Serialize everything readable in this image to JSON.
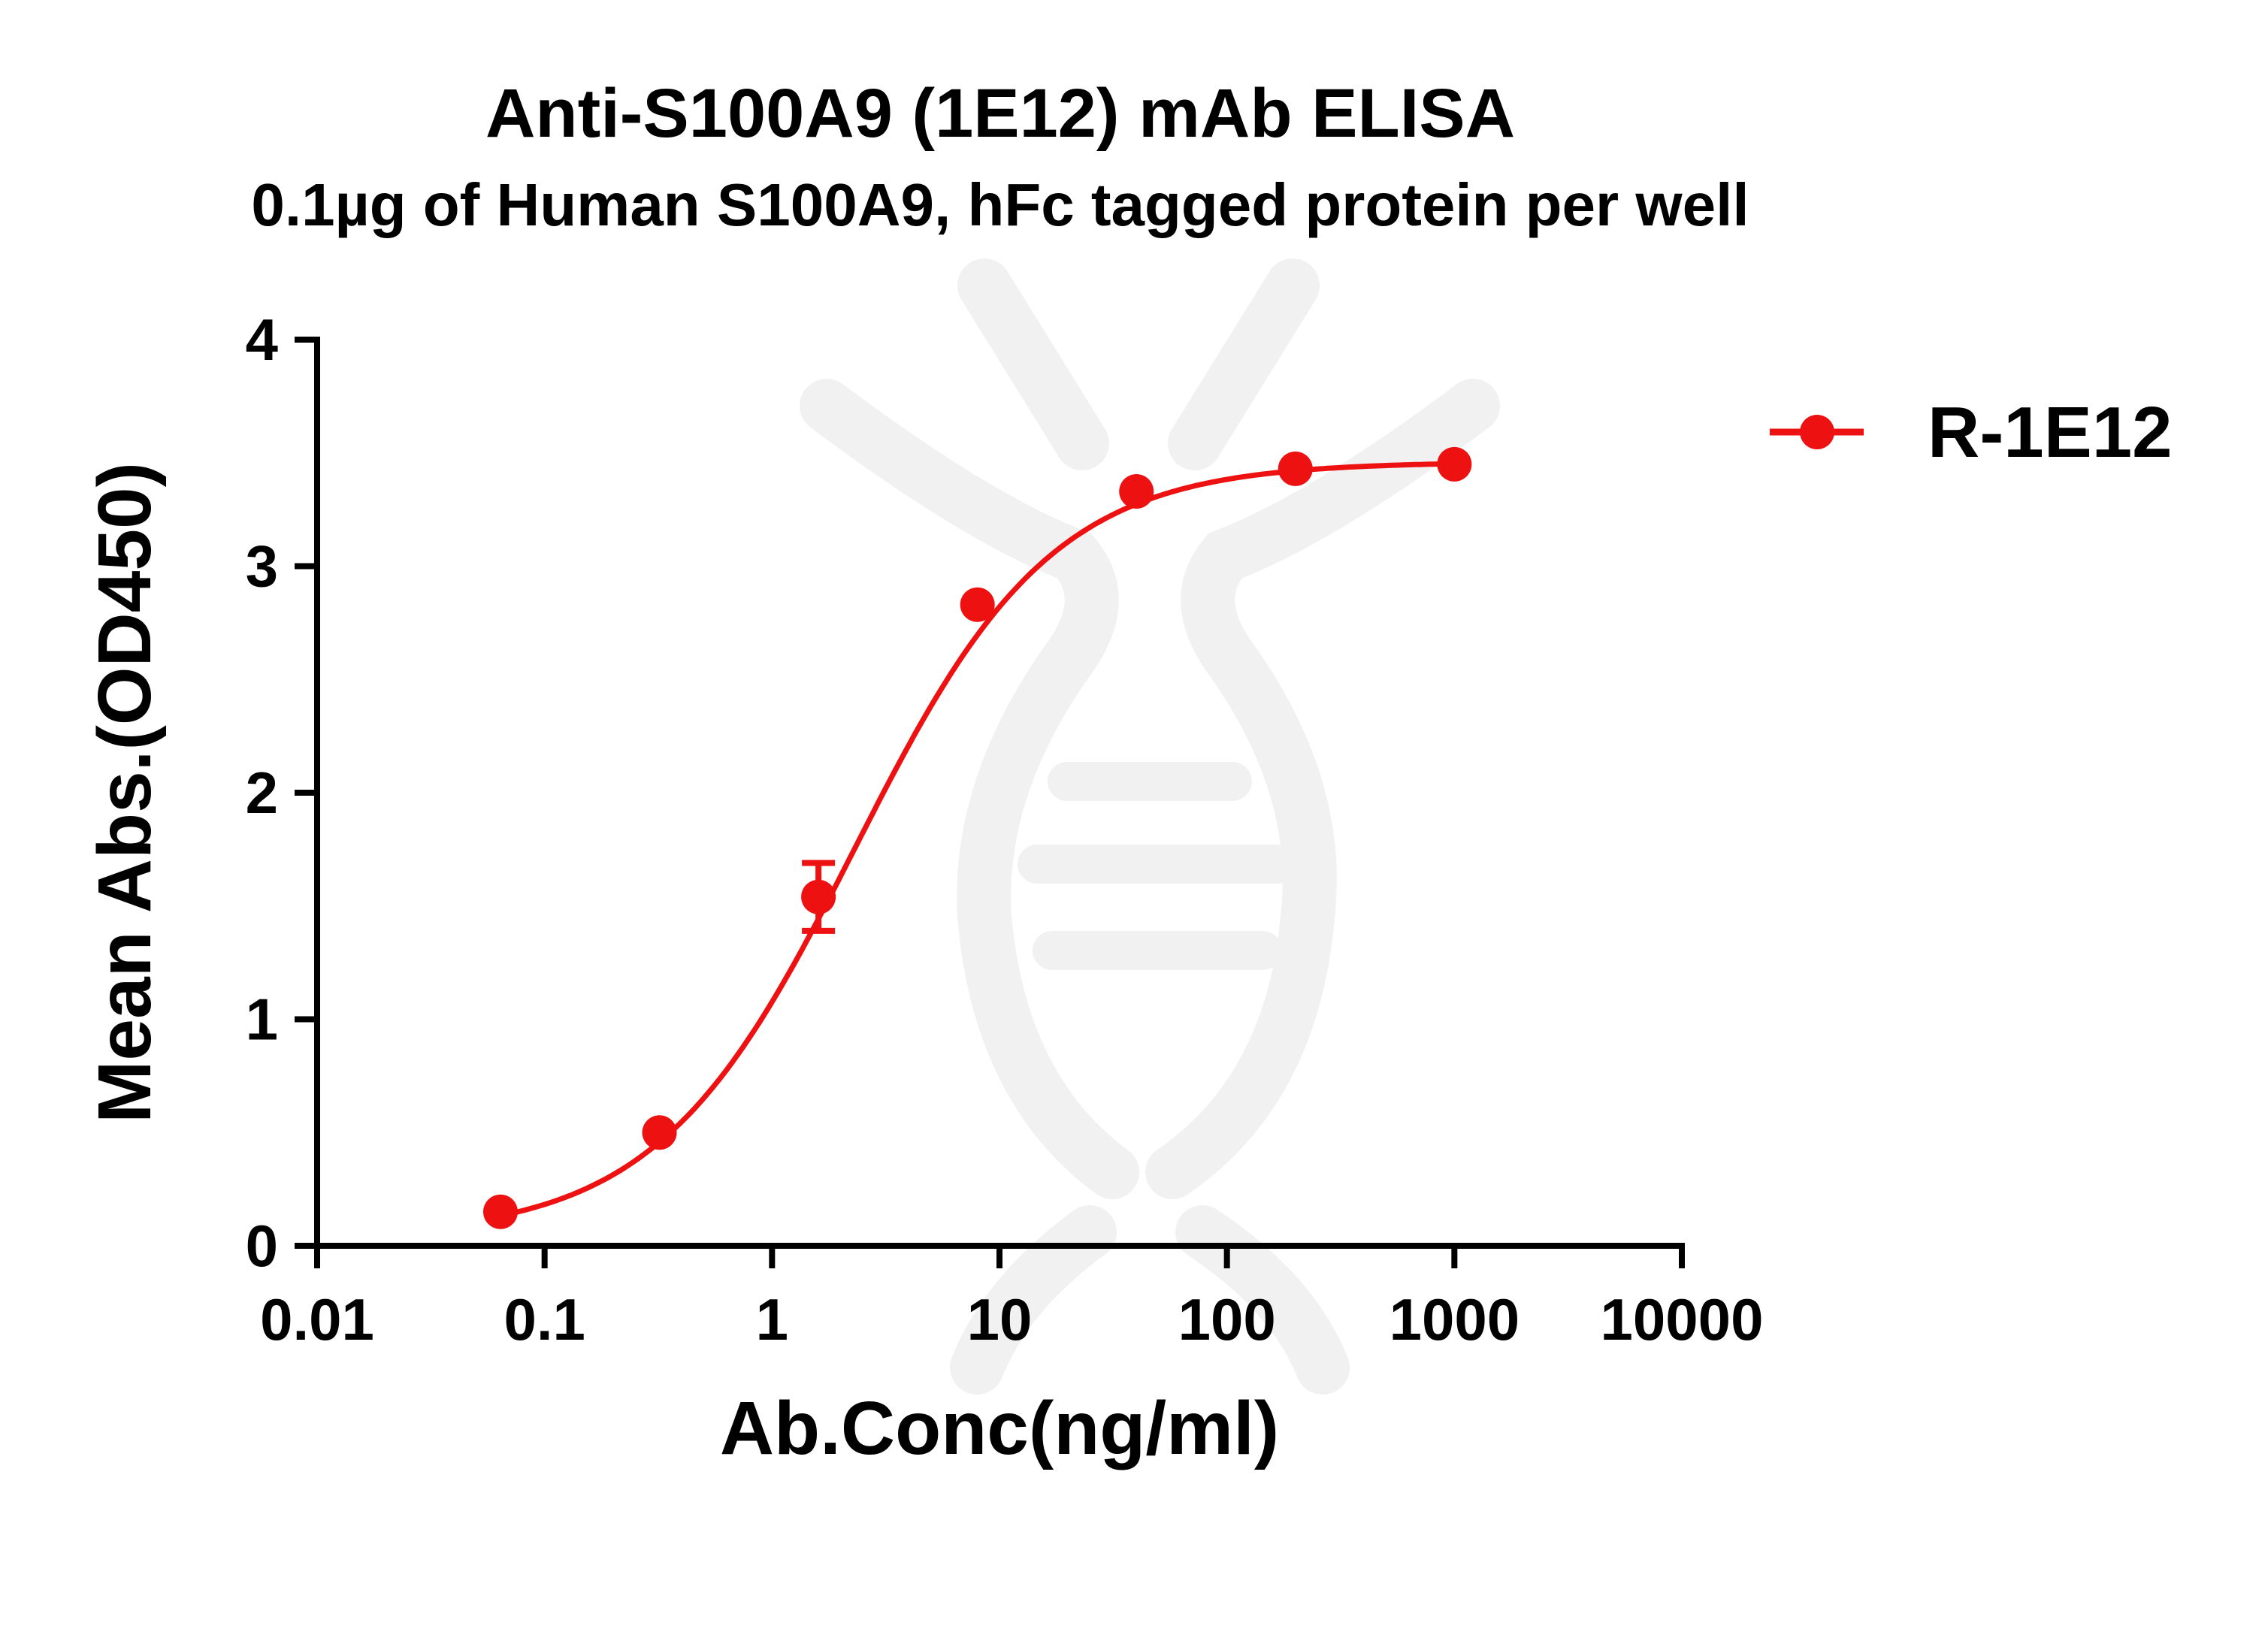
{
  "chart_data": {
    "type": "line",
    "title": "Anti-S100A9 (1E12) mAb ELISA",
    "subtitle": "0.1µg of Human S100A9, hFc tagged protein per well",
    "xlabel": "Ab.Conc(ng/ml)",
    "ylabel": "Mean Abs.(OD450)",
    "x_scale": "log",
    "xlim": [
      0.01,
      10000
    ],
    "ylim": [
      0,
      4
    ],
    "x_ticks": [
      0.01,
      0.1,
      1,
      10,
      100,
      1000,
      10000
    ],
    "x_tick_labels": [
      "0.01",
      "0.1",
      "1",
      "10",
      "100",
      "1000",
      "10000"
    ],
    "y_ticks": [
      0,
      1,
      2,
      3,
      4
    ],
    "y_tick_labels": [
      "0",
      "1",
      "2",
      "3",
      "4"
    ],
    "legend_position": "top-right",
    "series": [
      {
        "name": "R-1E12",
        "color": "#ee1111",
        "marker": "circle",
        "fit": "four-parameter logistic",
        "x": [
          0.064,
          0.32,
          1.6,
          8,
          40,
          200,
          1000
        ],
        "y": [
          0.15,
          0.5,
          1.54,
          2.83,
          3.33,
          3.43,
          3.45
        ],
        "error": [
          0,
          0,
          0.15,
          0,
          0,
          0,
          0
        ]
      }
    ]
  }
}
